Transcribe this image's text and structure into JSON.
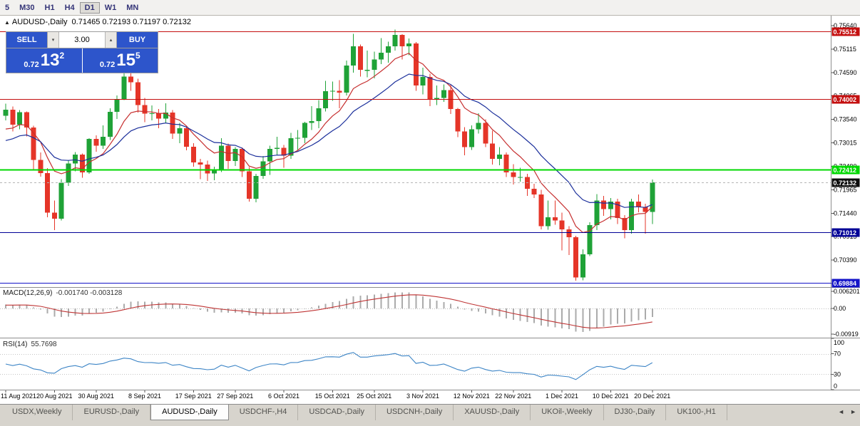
{
  "toolbar": {
    "timeframes": [
      {
        "label": "5",
        "active": false
      },
      {
        "label": "M30",
        "active": false
      },
      {
        "label": "H1",
        "active": false
      },
      {
        "label": "H4",
        "active": false
      },
      {
        "label": "D1",
        "active": true
      },
      {
        "label": "W1",
        "active": false
      },
      {
        "label": "MN",
        "active": false
      }
    ]
  },
  "chart": {
    "symbol": "AUDUSD-,Daily",
    "ohlc": "0.71465 0.72193 0.71197 0.72132"
  },
  "trade_panel": {
    "sell_label": "SELL",
    "buy_label": "BUY",
    "volume": "3.00",
    "sell_price": {
      "small": "0.72",
      "big": "13",
      "sup": "2"
    },
    "buy_price": {
      "small": "0.72",
      "big": "15",
      "sup": "5"
    },
    "accent_blue": "#2d55cb"
  },
  "chart_data": {
    "type": "candlestick",
    "symbol": "AUDUSD",
    "period": "Daily",
    "price_axis_ticks": [
      "0.75640",
      "0.75115",
      "0.74590",
      "0.74065",
      "0.73540",
      "0.73015",
      "0.72490",
      "0.71965",
      "0.71440",
      "0.70915",
      "0.70390",
      "0.69865"
    ],
    "horizontal_lines": [
      {
        "price": 0.75512,
        "label": "0.75512",
        "color": "#c40f0f",
        "width": 1
      },
      {
        "price": 0.74002,
        "label": "0.74002",
        "color": "#c40f0f",
        "width": 1
      },
      {
        "price": 0.72412,
        "label": "0.72412",
        "color": "#00d800",
        "width": 2
      },
      {
        "price": 0.71012,
        "label": "0.71012",
        "color": "#000096",
        "width": 1
      },
      {
        "price": 0.69884,
        "label": "0.69884",
        "color": "#1414c8",
        "width": 1
      }
    ],
    "current_price": {
      "value": 0.72132,
      "label": "0.72132",
      "tag_color": "#0d0d0d"
    },
    "date_labels": [
      {
        "i": 0,
        "label": "11 Aug 2021"
      },
      {
        "i": 7,
        "label": "20 Aug 2021"
      },
      {
        "i": 13,
        "label": "30 Aug 2021"
      },
      {
        "i": 20,
        "label": "8 Sep 2021"
      },
      {
        "i": 27,
        "label": "17 Sep 2021"
      },
      {
        "i": 33,
        "label": "27 Sep 2021"
      },
      {
        "i": 40,
        "label": "6 Oct 2021"
      },
      {
        "i": 47,
        "label": "15 Oct 2021"
      },
      {
        "i": 53,
        "label": "25 Oct 2021"
      },
      {
        "i": 60,
        "label": "3 Nov 2021"
      },
      {
        "i": 67,
        "label": "12 Nov 2021"
      },
      {
        "i": 73,
        "label": "22 Nov 2021"
      },
      {
        "i": 80,
        "label": "1 Dec 2021"
      },
      {
        "i": 87,
        "label": "10 Dec 2021"
      },
      {
        "i": 93,
        "label": "20 Dec 2021"
      }
    ],
    "candles_ohlc": [
      [
        0.7362,
        0.7389,
        0.7352,
        0.7376
      ],
      [
        0.7376,
        0.7383,
        0.7327,
        0.7342
      ],
      [
        0.7342,
        0.7375,
        0.7332,
        0.737
      ],
      [
        0.737,
        0.7372,
        0.7316,
        0.7336
      ],
      [
        0.7336,
        0.734,
        0.724,
        0.7263
      ],
      [
        0.7263,
        0.728,
        0.7226,
        0.7234
      ],
      [
        0.7234,
        0.7245,
        0.7135,
        0.7145
      ],
      [
        0.7145,
        0.7172,
        0.7106,
        0.7132
      ],
      [
        0.7132,
        0.722,
        0.7128,
        0.7212
      ],
      [
        0.7212,
        0.7262,
        0.7205,
        0.7255
      ],
      [
        0.7255,
        0.7281,
        0.7238,
        0.7275
      ],
      [
        0.7275,
        0.7278,
        0.7223,
        0.7235
      ],
      [
        0.7235,
        0.7312,
        0.7232,
        0.731
      ],
      [
        0.731,
        0.7318,
        0.7282,
        0.7295
      ],
      [
        0.7295,
        0.7341,
        0.7288,
        0.7315
      ],
      [
        0.7315,
        0.7379,
        0.7308,
        0.7371
      ],
      [
        0.7371,
        0.7408,
        0.7355,
        0.74
      ],
      [
        0.74,
        0.7478,
        0.7397,
        0.745
      ],
      [
        0.745,
        0.7462,
        0.7418,
        0.7437
      ],
      [
        0.7437,
        0.7445,
        0.7369,
        0.7386
      ],
      [
        0.7386,
        0.7402,
        0.7348,
        0.7367
      ],
      [
        0.7367,
        0.7385,
        0.7352,
        0.7368
      ],
      [
        0.7368,
        0.7377,
        0.7334,
        0.7356
      ],
      [
        0.7356,
        0.739,
        0.7346,
        0.7369
      ],
      [
        0.7369,
        0.7375,
        0.731,
        0.7322
      ],
      [
        0.7322,
        0.7346,
        0.7301,
        0.7334
      ],
      [
        0.7334,
        0.734,
        0.7285,
        0.7293
      ],
      [
        0.7293,
        0.7301,
        0.7248,
        0.7258
      ],
      [
        0.7258,
        0.7266,
        0.722,
        0.7253
      ],
      [
        0.7253,
        0.7262,
        0.7216,
        0.7233
      ],
      [
        0.7233,
        0.7248,
        0.7218,
        0.724
      ],
      [
        0.724,
        0.7312,
        0.7236,
        0.7295
      ],
      [
        0.7295,
        0.73,
        0.7243,
        0.7261
      ],
      [
        0.7261,
        0.7292,
        0.725,
        0.7288
      ],
      [
        0.7288,
        0.7291,
        0.7225,
        0.7238
      ],
      [
        0.7238,
        0.7247,
        0.717,
        0.7176
      ],
      [
        0.7176,
        0.7232,
        0.7168,
        0.7227
      ],
      [
        0.7227,
        0.7272,
        0.7221,
        0.726
      ],
      [
        0.726,
        0.7295,
        0.723,
        0.7288
      ],
      [
        0.7288,
        0.7315,
        0.7274,
        0.729
      ],
      [
        0.729,
        0.7297,
        0.7246,
        0.7273
      ],
      [
        0.7273,
        0.7324,
        0.7266,
        0.7312
      ],
      [
        0.7312,
        0.733,
        0.7286,
        0.7313
      ],
      [
        0.7313,
        0.7349,
        0.7301,
        0.7346
      ],
      [
        0.7346,
        0.7384,
        0.733,
        0.735
      ],
      [
        0.735,
        0.7397,
        0.7334,
        0.7379
      ],
      [
        0.7379,
        0.744,
        0.7372,
        0.7417
      ],
      [
        0.7417,
        0.7439,
        0.7396,
        0.7418
      ],
      [
        0.7418,
        0.7442,
        0.7379,
        0.7414
      ],
      [
        0.7414,
        0.7486,
        0.7408,
        0.7475
      ],
      [
        0.7475,
        0.7546,
        0.7459,
        0.7518
      ],
      [
        0.7518,
        0.7522,
        0.745,
        0.7465
      ],
      [
        0.7465,
        0.7508,
        0.7448,
        0.7465
      ],
      [
        0.7465,
        0.7506,
        0.7446,
        0.7488
      ],
      [
        0.7488,
        0.7536,
        0.7478,
        0.7503
      ],
      [
        0.7503,
        0.7528,
        0.7481,
        0.7518
      ],
      [
        0.7518,
        0.7555,
        0.7508,
        0.7543
      ],
      [
        0.7543,
        0.7545,
        0.7488,
        0.7518
      ],
      [
        0.7518,
        0.7535,
        0.7498,
        0.7524
      ],
      [
        0.7524,
        0.7527,
        0.7418,
        0.743
      ],
      [
        0.743,
        0.747,
        0.741,
        0.7449
      ],
      [
        0.7449,
        0.7456,
        0.7384,
        0.74
      ],
      [
        0.74,
        0.743,
        0.7386,
        0.7402
      ],
      [
        0.7402,
        0.7432,
        0.7393,
        0.742
      ],
      [
        0.742,
        0.7432,
        0.7366,
        0.7377
      ],
      [
        0.7377,
        0.738,
        0.7314,
        0.7327
      ],
      [
        0.7327,
        0.7337,
        0.7274,
        0.7292
      ],
      [
        0.7292,
        0.7341,
        0.7286,
        0.7332
      ],
      [
        0.7332,
        0.7368,
        0.7322,
        0.7346
      ],
      [
        0.7346,
        0.7354,
        0.7292,
        0.73
      ],
      [
        0.73,
        0.7329,
        0.7253,
        0.7266
      ],
      [
        0.7266,
        0.7292,
        0.7251,
        0.7275
      ],
      [
        0.7275,
        0.728,
        0.7225,
        0.7235
      ],
      [
        0.7235,
        0.7254,
        0.7208,
        0.7225
      ],
      [
        0.7225,
        0.7246,
        0.7215,
        0.7225
      ],
      [
        0.7225,
        0.7232,
        0.7183,
        0.7199
      ],
      [
        0.7199,
        0.721,
        0.7178,
        0.7186
      ],
      [
        0.7186,
        0.7196,
        0.7108,
        0.7115
      ],
      [
        0.7115,
        0.7172,
        0.7107,
        0.7135
      ],
      [
        0.7135,
        0.7172,
        0.7118,
        0.7128
      ],
      [
        0.7128,
        0.7145,
        0.7061,
        0.7108
      ],
      [
        0.7108,
        0.7115,
        0.705,
        0.709
      ],
      [
        0.709,
        0.7093,
        0.6993,
        0.7
      ],
      [
        0.7,
        0.7063,
        0.6994,
        0.7052
      ],
      [
        0.7052,
        0.7124,
        0.7048,
        0.7117
      ],
      [
        0.7117,
        0.7187,
        0.7106,
        0.7172
      ],
      [
        0.7172,
        0.7183,
        0.7138,
        0.7153
      ],
      [
        0.7153,
        0.7178,
        0.713,
        0.717
      ],
      [
        0.717,
        0.7176,
        0.712,
        0.7133
      ],
      [
        0.7133,
        0.714,
        0.7088,
        0.7106
      ],
      [
        0.7106,
        0.7176,
        0.7098,
        0.717
      ],
      [
        0.717,
        0.7186,
        0.7146,
        0.7158
      ],
      [
        0.7158,
        0.7165,
        0.7098,
        0.71465
      ],
      [
        0.71465,
        0.72193,
        0.71197,
        0.72132
      ]
    ],
    "macd": {
      "title": "MACD(12,26,9)",
      "values_text": "-0.001740 -0.003128",
      "fast": 12,
      "slow": 26,
      "signal": 9,
      "axis_ticks": [
        "0.006201",
        "0.00",
        "-0.00919"
      ]
    },
    "rsi": {
      "title": "RSI(14)",
      "value_text": "55.7698",
      "period": 14,
      "levels": [
        70,
        30
      ],
      "axis_ticks": [
        "100",
        "70",
        "30",
        "0"
      ]
    },
    "colors": {
      "candle_up": "#1fa237",
      "candle_down": "#e53528",
      "ma_fast": "#c62f2f",
      "ma_slow": "#1b2f9b",
      "macd_histogram": "#ababab",
      "macd_signal": "#bf3434",
      "rsi_line": "#3d85c6"
    }
  },
  "tabs": {
    "items": [
      {
        "label": "USDX,Weekly",
        "active": false
      },
      {
        "label": "EURUSD-,Daily",
        "active": false
      },
      {
        "label": "AUDUSD-,Daily",
        "active": true
      },
      {
        "label": "USDCHF-,H4",
        "active": false
      },
      {
        "label": "USDCAD-,Daily",
        "active": false
      },
      {
        "label": "USDCNH-,Daily",
        "active": false
      },
      {
        "label": "XAUUSD-,Daily",
        "active": false
      },
      {
        "label": "UKOil-,Weekly",
        "active": false
      },
      {
        "label": "DJ30-,Daily",
        "active": false
      },
      {
        "label": "UK100-,H1",
        "active": false
      }
    ]
  }
}
